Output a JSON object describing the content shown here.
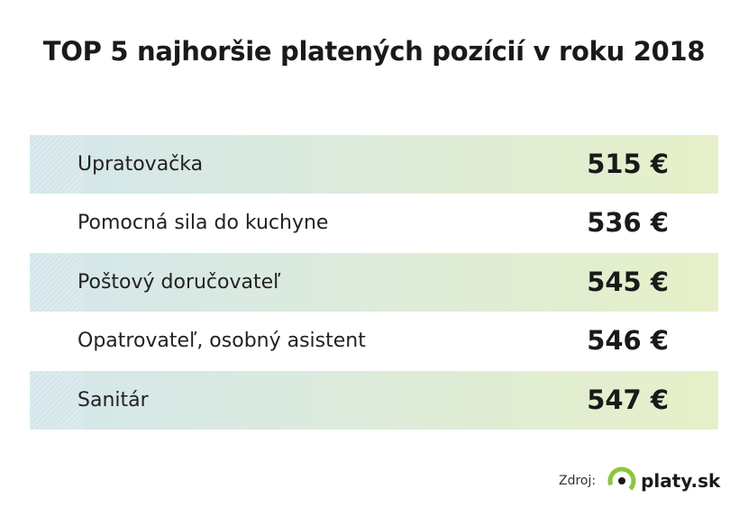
{
  "header": {
    "title": "TOP 5 najhoršie platených pozícií v roku 2018"
  },
  "table": {
    "rows": [
      [
        "Upratovačka",
        "515 €"
      ],
      [
        "Pomocná sila do kuchyne",
        "536 €"
      ],
      [
        "Poštový doručovateľ",
        "545 €"
      ],
      [
        "Opatrovateľ, osobný asistent",
        "546 €"
      ],
      [
        "Sanitár",
        "547 €"
      ]
    ]
  },
  "footer": {
    "source_label": "Zdroj:",
    "logo": "platy.sk"
  }
}
